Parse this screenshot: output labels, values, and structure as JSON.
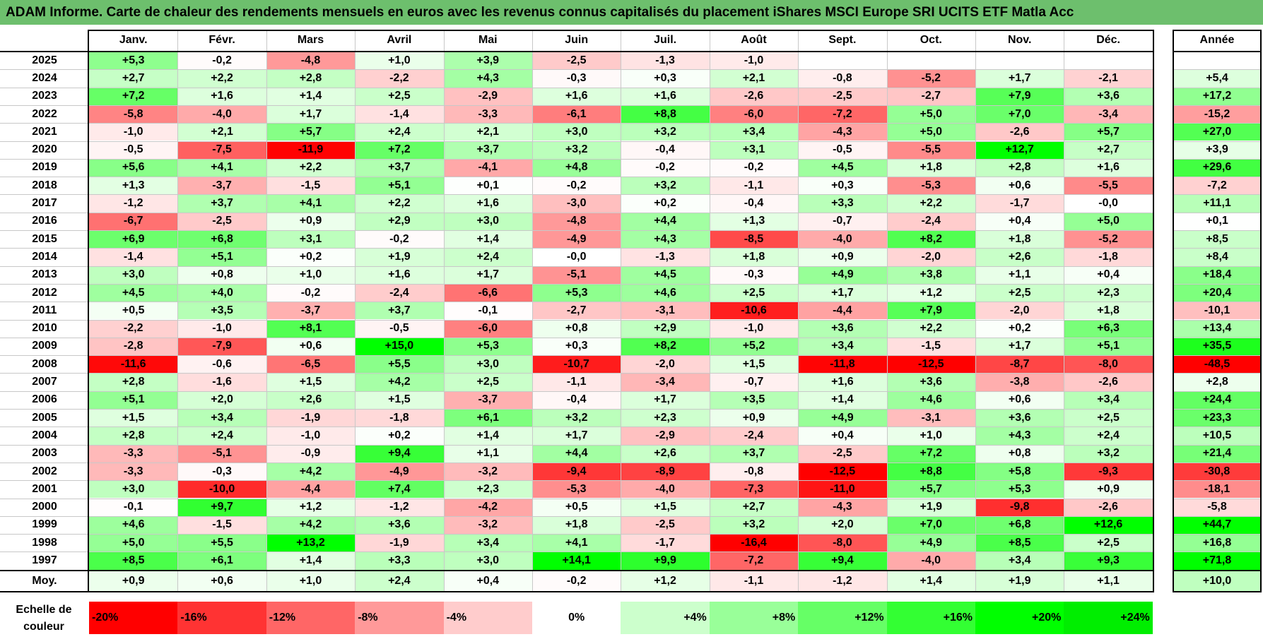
{
  "title": "ADAM Informe. Carte de chaleur des rendements mensuels en euros avec les revenus connus capitalisés du placement iShares MSCI Europe SRI UCITS ETF Matla Acc",
  "chart_data": {
    "type": "heatmap",
    "title": "ADAM Informe. Carte de chaleur des rendements mensuels en euros avec les revenus connus capitalisés du placement iShares MSCI Europe SRI UCITS ETF Matla Acc",
    "months": [
      "Janv.",
      "Févr.",
      "Mars",
      "Avril",
      "Mai",
      "Juin",
      "Juil.",
      "Août",
      "Sept.",
      "Oct.",
      "Nov.",
      "Déc."
    ],
    "year_header": "Année",
    "rows": [
      {
        "year": "2025",
        "values": [
          "+5,3",
          "-0,2",
          "-4,8",
          "+1,0",
          "+3,9",
          "-2,5",
          "-1,3",
          "-1,0",
          "",
          "",
          "",
          ""
        ],
        "annual": ""
      },
      {
        "year": "2024",
        "values": [
          "+2,7",
          "+2,2",
          "+2,8",
          "-2,2",
          "+4,3",
          "-0,3",
          "+0,3",
          "+2,1",
          "-0,8",
          "-5,2",
          "+1,7",
          "-2,1"
        ],
        "annual": "+5,4"
      },
      {
        "year": "2023",
        "values": [
          "+7,2",
          "+1,6",
          "+1,4",
          "+2,5",
          "-2,9",
          "+1,6",
          "+1,6",
          "-2,6",
          "-2,5",
          "-2,7",
          "+7,9",
          "+3,6"
        ],
        "annual": "+17,2"
      },
      {
        "year": "2022",
        "values": [
          "-5,8",
          "-4,0",
          "+1,7",
          "-1,4",
          "-3,3",
          "-6,1",
          "+8,8",
          "-6,0",
          "-7,2",
          "+5,0",
          "+7,0",
          "-3,4"
        ],
        "annual": "-15,2"
      },
      {
        "year": "2021",
        "values": [
          "-1,0",
          "+2,1",
          "+5,7",
          "+2,4",
          "+2,1",
          "+3,0",
          "+3,2",
          "+3,4",
          "-4,3",
          "+5,0",
          "-2,6",
          "+5,7"
        ],
        "annual": "+27,0"
      },
      {
        "year": "2020",
        "values": [
          "-0,5",
          "-7,5",
          "-11,9",
          "+7,2",
          "+3,7",
          "+3,2",
          "-0,4",
          "+3,1",
          "-0,5",
          "-5,5",
          "+12,7",
          "+2,7"
        ],
        "annual": "+3,9"
      },
      {
        "year": "2019",
        "values": [
          "+5,6",
          "+4,1",
          "+2,2",
          "+3,7",
          "-4,1",
          "+4,8",
          "-0,2",
          "-0,2",
          "+4,5",
          "+1,8",
          "+2,8",
          "+1,6"
        ],
        "annual": "+29,6"
      },
      {
        "year": "2018",
        "values": [
          "+1,3",
          "-3,7",
          "-1,5",
          "+5,1",
          "+0,1",
          "-0,2",
          "+3,2",
          "-1,1",
          "+0,3",
          "-5,3",
          "+0,6",
          "-5,5"
        ],
        "annual": "-7,2"
      },
      {
        "year": "2017",
        "values": [
          "-1,2",
          "+3,7",
          "+4,1",
          "+2,2",
          "+1,6",
          "-3,0",
          "+0,2",
          "-0,4",
          "+3,3",
          "+2,2",
          "-1,7",
          "-0,0"
        ],
        "annual": "+11,1"
      },
      {
        "year": "2016",
        "values": [
          "-6,7",
          "-2,5",
          "+0,9",
          "+2,9",
          "+3,0",
          "-4,8",
          "+4,4",
          "+1,3",
          "-0,7",
          "-2,4",
          "+0,4",
          "+5,0"
        ],
        "annual": "+0,1"
      },
      {
        "year": "2015",
        "values": [
          "+6,9",
          "+6,8",
          "+3,1",
          "-0,2",
          "+1,4",
          "-4,9",
          "+4,3",
          "-8,5",
          "-4,0",
          "+8,2",
          "+1,8",
          "-5,2"
        ],
        "annual": "+8,5"
      },
      {
        "year": "2014",
        "values": [
          "-1,4",
          "+5,1",
          "+0,2",
          "+1,9",
          "+2,4",
          "-0,0",
          "-1,3",
          "+1,8",
          "+0,9",
          "-2,0",
          "+2,6",
          "-1,8"
        ],
        "annual": "+8,4"
      },
      {
        "year": "2013",
        "values": [
          "+3,0",
          "+0,8",
          "+1,0",
          "+1,6",
          "+1,7",
          "-5,1",
          "+4,5",
          "-0,3",
          "+4,9",
          "+3,8",
          "+1,1",
          "+0,4"
        ],
        "annual": "+18,4"
      },
      {
        "year": "2012",
        "values": [
          "+4,5",
          "+4,0",
          "-0,2",
          "-2,4",
          "-6,6",
          "+5,3",
          "+4,6",
          "+2,5",
          "+1,7",
          "+1,2",
          "+2,5",
          "+2,3"
        ],
        "annual": "+20,4"
      },
      {
        "year": "2011",
        "values": [
          "+0,5",
          "+3,5",
          "-3,7",
          "+3,7",
          "-0,1",
          "-2,7",
          "-3,1",
          "-10,6",
          "-4,4",
          "+7,9",
          "-2,0",
          "+1,8"
        ],
        "annual": "-10,1"
      },
      {
        "year": "2010",
        "values": [
          "-2,2",
          "-1,0",
          "+8,1",
          "-0,5",
          "-6,0",
          "+0,8",
          "+2,9",
          "-1,0",
          "+3,6",
          "+2,2",
          "+0,2",
          "+6,3"
        ],
        "annual": "+13,4"
      },
      {
        "year": "2009",
        "values": [
          "-2,8",
          "-7,9",
          "+0,6",
          "+15,0",
          "+5,3",
          "+0,3",
          "+8,2",
          "+5,2",
          "+3,4",
          "-1,5",
          "+1,7",
          "+5,1"
        ],
        "annual": "+35,5"
      },
      {
        "year": "2008",
        "values": [
          "-11,6",
          "-0,6",
          "-6,5",
          "+5,5",
          "+3,0",
          "-10,7",
          "-2,0",
          "+1,5",
          "-11,8",
          "-12,5",
          "-8,7",
          "-8,0"
        ],
        "annual": "-48,5"
      },
      {
        "year": "2007",
        "values": [
          "+2,8",
          "-1,6",
          "+1,5",
          "+4,2",
          "+2,5",
          "-1,1",
          "-3,4",
          "-0,7",
          "+1,6",
          "+3,6",
          "-3,8",
          "-2,6"
        ],
        "annual": "+2,8"
      },
      {
        "year": "2006",
        "values": [
          "+5,1",
          "+2,0",
          "+2,6",
          "+1,5",
          "-3,7",
          "-0,4",
          "+1,7",
          "+3,5",
          "+1,4",
          "+4,6",
          "+0,6",
          "+3,4"
        ],
        "annual": "+24,4"
      },
      {
        "year": "2005",
        "values": [
          "+1,5",
          "+3,4",
          "-1,9",
          "-1,8",
          "+6,1",
          "+3,2",
          "+2,3",
          "+0,9",
          "+4,9",
          "-3,1",
          "+3,6",
          "+2,5"
        ],
        "annual": "+23,3"
      },
      {
        "year": "2004",
        "values": [
          "+2,8",
          "+2,4",
          "-1,0",
          "+0,2",
          "+1,4",
          "+1,7",
          "-2,9",
          "-2,4",
          "+0,4",
          "+1,0",
          "+4,3",
          "+2,4"
        ],
        "annual": "+10,5"
      },
      {
        "year": "2003",
        "values": [
          "-3,3",
          "-5,1",
          "-0,9",
          "+9,4",
          "+1,1",
          "+4,4",
          "+2,6",
          "+3,7",
          "-2,5",
          "+7,2",
          "+0,8",
          "+3,2"
        ],
        "annual": "+21,4"
      },
      {
        "year": "2002",
        "values": [
          "-3,3",
          "-0,3",
          "+4,2",
          "-4,9",
          "-3,2",
          "-9,4",
          "-8,9",
          "-0,8",
          "-12,5",
          "+8,8",
          "+5,8",
          "-9,3"
        ],
        "annual": "-30,8"
      },
      {
        "year": "2001",
        "values": [
          "+3,0",
          "-10,0",
          "-4,4",
          "+7,4",
          "+2,3",
          "-5,3",
          "-4,0",
          "-7,3",
          "-11,0",
          "+5,7",
          "+5,3",
          "+0,9"
        ],
        "annual": "-18,1"
      },
      {
        "year": "2000",
        "values": [
          "-0,1",
          "+9,7",
          "+1,2",
          "-1,2",
          "-4,2",
          "+0,5",
          "+1,5",
          "+2,7",
          "-4,3",
          "+1,9",
          "-9,8",
          "-2,6"
        ],
        "annual": "-5,8"
      },
      {
        "year": "1999",
        "values": [
          "+4,6",
          "-1,5",
          "+4,2",
          "+3,6",
          "-3,2",
          "+1,8",
          "-2,5",
          "+3,2",
          "+2,0",
          "+7,0",
          "+6,8",
          "+12,6"
        ],
        "annual": "+44,7"
      },
      {
        "year": "1998",
        "values": [
          "+5,0",
          "+5,5",
          "+13,2",
          "-1,9",
          "+3,4",
          "+4,1",
          "-1,7",
          "-16,4",
          "-8,0",
          "+4,9",
          "+8,5",
          "+2,5"
        ],
        "annual": "+16,8"
      },
      {
        "year": "1997",
        "values": [
          "+8,5",
          "+6,1",
          "+1,4",
          "+3,3",
          "+3,0",
          "+14,1",
          "+9,9",
          "-7,2",
          "+9,4",
          "-4,0",
          "+3,4",
          "+9,3"
        ],
        "annual": "+71,8"
      }
    ],
    "average": {
      "label": "Moy.",
      "values": [
        "+0,9",
        "+0,6",
        "+1,0",
        "+2,4",
        "+0,4",
        "-0,2",
        "+1,2",
        "-1,1",
        "-1,2",
        "+1,4",
        "+1,9",
        "+1,1"
      ],
      "annual": "+10,0"
    },
    "scale": {
      "caption": "Echelle de couleur",
      "steps": [
        {
          "label": "-20%",
          "color": "#ff0000"
        },
        {
          "label": "-16%",
          "color": "#ff3333"
        },
        {
          "label": "-12%",
          "color": "#ff6666"
        },
        {
          "label": "-8%",
          "color": "#ff9999"
        },
        {
          "label": "-4%",
          "color": "#ffcccc"
        },
        {
          "label": "0%",
          "color": "#ffffff"
        },
        {
          "label": "+4%",
          "color": "#ccffcc"
        },
        {
          "label": "+8%",
          "color": "#99ff99"
        },
        {
          "label": "+12%",
          "color": "#66ff66"
        },
        {
          "label": "+16%",
          "color": "#33ff33"
        },
        {
          "label": "+20%",
          "color": "#00ff00"
        },
        {
          "label": "+24%",
          "color": "#00ee00"
        }
      ]
    }
  }
}
